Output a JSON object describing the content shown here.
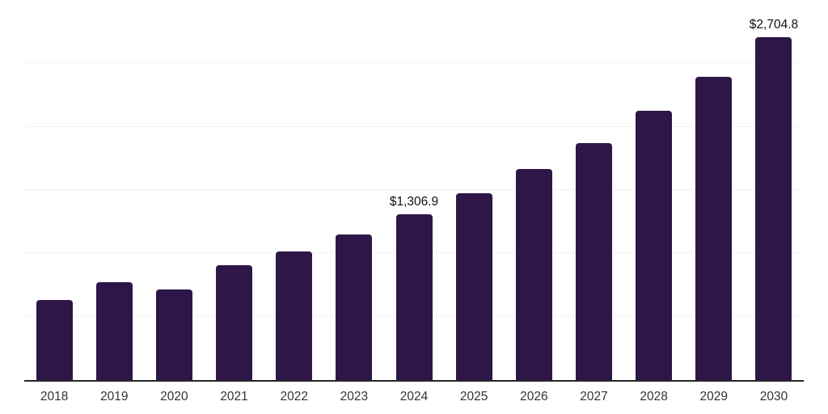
{
  "chart_data": {
    "type": "bar",
    "title": "",
    "xlabel": "",
    "ylabel": "",
    "categories": [
      "2018",
      "2019",
      "2020",
      "2021",
      "2022",
      "2023",
      "2024",
      "2025",
      "2026",
      "2027",
      "2028",
      "2029",
      "2030"
    ],
    "values": [
      630,
      770,
      712,
      905,
      1015,
      1150,
      1306.9,
      1475,
      1665,
      1870,
      2125,
      2395,
      2704.8
    ],
    "point_labels": [
      null,
      null,
      null,
      null,
      null,
      null,
      "$1,306.9",
      null,
      null,
      null,
      null,
      null,
      "$2,704.8"
    ],
    "ylim": [
      0,
      3000
    ],
    "gridline_step": 500,
    "grid": true,
    "y_tick_labels_visible": false,
    "legend_position": "none",
    "colors": {
      "bar": "#2e1648",
      "axis_line": "#262626",
      "gridline": "#f1f1f1",
      "x_tick_label": "#333333",
      "value_label": "#111111",
      "background": "#ffffff"
    }
  }
}
